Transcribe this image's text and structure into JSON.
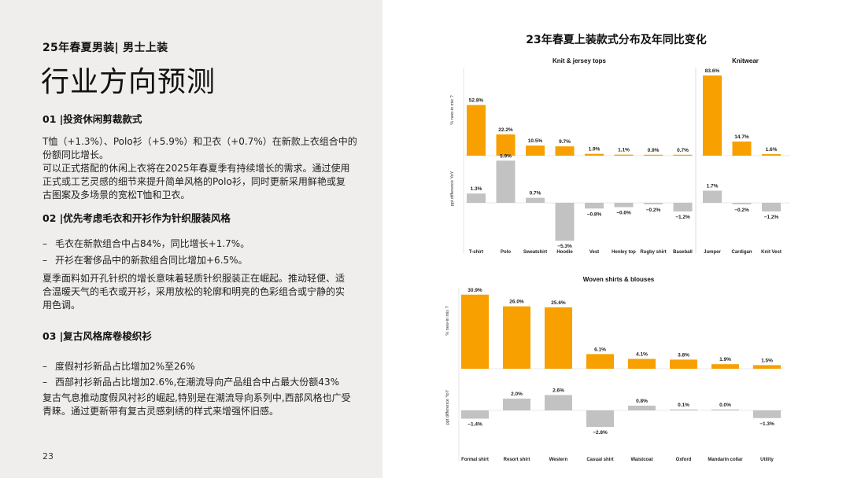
{
  "left": {
    "kicker": "25年春夏男装| 男士上装",
    "title": "行业方向预测",
    "sections": [
      {
        "heading": "01 |投资休闲剪裁款式",
        "paragraph_lines": [
          "T恤（+1.3%）、Polo衫（+5.9%）和卫衣（+0.7%）在新款上衣组合中的",
          "份额同比增长。",
          "可以正式搭配的休闲上衣将在2025年春夏季有持续增长的需求。通过使用",
          "正式或工艺灵感的细节来提升简单风格的Polo衫，同时更新采用鲜艳或复",
          "古图案及多场景的宽松T恤和卫衣。"
        ]
      },
      {
        "heading": "02 |优先考虑毛衣和开衫作为针织服装风格",
        "bullets": [
          "毛衣在新款组合中占84%，同比增长+1.7%。",
          "开衫在奢侈品中的新款组合同比增加+6.5%。"
        ],
        "paragraph_lines": [
          "夏季面料如开孔针织的增长意味着轻质针织服装正在崛起。推动轻便、适",
          "合温暖天气的毛衣或开衫，采用放松的轮廓和明亮的色彩组合或宁静的实",
          "用色调。"
        ]
      },
      {
        "heading": "03 |复古风格席卷梭织衫",
        "bullets": [
          "度假衬衫新品占比增加2%至26%",
          "西部衬衫新品占比增加2.6%,在潮流导向产品组合中占最大份额43%"
        ],
        "paragraph_lines": [
          "复古气息推动度假风衬衫的崛起,特别是在潮流导向系列中,西部风格也广受",
          "青睐。通过更新带有复古灵感刺绣的样式来增强怀旧感。"
        ]
      }
    ],
    "page_number": "23"
  },
  "chart_title": "23年春夏上装款式分布及年同比变化",
  "colors": {
    "new_in_mix": "#f7a000",
    "yoy_difference": "#c2c2c2"
  },
  "axis_labels": {
    "top": "% new-in mix ?",
    "bottom": "ppt difference YoY"
  },
  "chart_data": [
    {
      "type": "bar",
      "title": "Knit & jersey tops",
      "categories": [
        "T-shirt",
        "Polo",
        "Sweatshirt",
        "Hoodie",
        "Vest",
        "Henley top",
        "Rugby shirt",
        "Baseball"
      ],
      "series": [
        {
          "values": [
            52.8,
            22.2,
            10.5,
            9.7,
            1.9,
            1.1,
            0.9,
            0.7
          ]
        },
        {
          "values": [
            1.3,
            5.9,
            0.7,
            -5.3,
            -0.8,
            -0.6,
            -0.2,
            -1.2
          ]
        }
      ]
    },
    {
      "type": "bar",
      "title": "Knitwear",
      "categories": [
        "Jumper",
        "Cardigan",
        "Knit Vest"
      ],
      "series": [
        {
          "values": [
            83.6,
            14.7,
            1.6
          ]
        },
        {
          "values": [
            1.7,
            -0.2,
            -1.2
          ]
        }
      ]
    },
    {
      "type": "bar",
      "title": "Woven shirts & blouses",
      "categories": [
        "Formal shirt",
        "Resort shirt",
        "Western",
        "Casual shirt",
        "Waistcoat",
        "Oxford",
        "Mandarin collar",
        "Utility"
      ],
      "series": [
        {
          "values": [
            30.9,
            26.0,
            25.6,
            6.1,
            4.1,
            3.8,
            1.9,
            1.5
          ]
        },
        {
          "values": [
            -1.4,
            2.0,
            2.6,
            -2.8,
            0.8,
            0.1,
            0.0,
            -1.3
          ]
        }
      ]
    }
  ]
}
